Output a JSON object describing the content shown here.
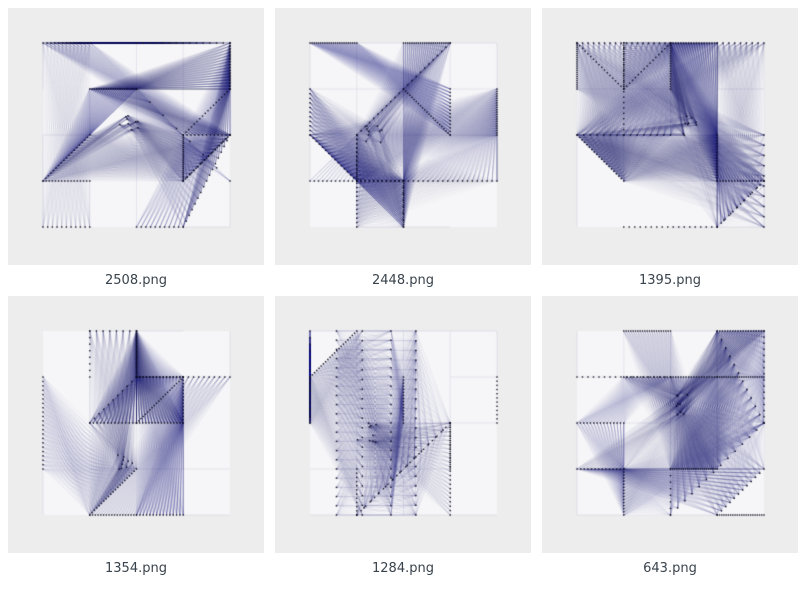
{
  "page": {
    "background": "#ffffff"
  },
  "gallery": {
    "rows": 2,
    "cols": 3,
    "tile_background": "#ededee",
    "plot_background": "#f6f6f8",
    "edge_color_rgb": "35,35,118",
    "node_color": "rgba(10,10,28,0.95)",
    "grid_color": "rgba(130,130,180,0.3)",
    "rung_color": "rgba(120,120,175,0.45)",
    "caption_color": "#39434c",
    "items": [
      {
        "filename": "2508.png",
        "pattern": {
          "seed": 7,
          "chains": 16,
          "orient": [
            0.5,
            0.2,
            0.3
          ],
          "links": 13,
          "focus": [
            0.45,
            0.42
          ],
          "focus_links": 3,
          "ladders": 0
        }
      },
      {
        "filename": "2448.png",
        "pattern": {
          "seed": 15,
          "chains": 15,
          "orient": [
            0.35,
            0.35,
            0.3
          ],
          "links": 12,
          "focus": [
            0.33,
            0.5
          ],
          "focus_links": 3,
          "ladders": 0
        }
      },
      {
        "filename": "1395.png",
        "pattern": {
          "seed": 23,
          "chains": 17,
          "orient": [
            0.4,
            0.3,
            0.3
          ],
          "links": 15,
          "focus": [
            0.6,
            0.45
          ],
          "focus_links": 4,
          "ladders": 0
        }
      },
      {
        "filename": "1354.png",
        "pattern": {
          "seed": 31,
          "chains": 16,
          "orient": [
            0.4,
            0.3,
            0.3
          ],
          "links": 14,
          "focus": [
            0.45,
            0.72
          ],
          "focus_links": 3,
          "ladders": 0
        }
      },
      {
        "filename": "1284.png",
        "pattern": {
          "seed": 41,
          "chains": 10,
          "orient": [
            0.1,
            0.6,
            0.3
          ],
          "links": 8,
          "focus": [
            0.3,
            0.55
          ],
          "focus_links": 2,
          "ladders": 2
        }
      },
      {
        "filename": "643.png",
        "pattern": {
          "seed": 55,
          "chains": 16,
          "orient": [
            0.4,
            0.3,
            0.3
          ],
          "links": 13,
          "focus": [
            0.55,
            0.4
          ],
          "focus_links": 6,
          "ladders": 0
        }
      }
    ]
  }
}
